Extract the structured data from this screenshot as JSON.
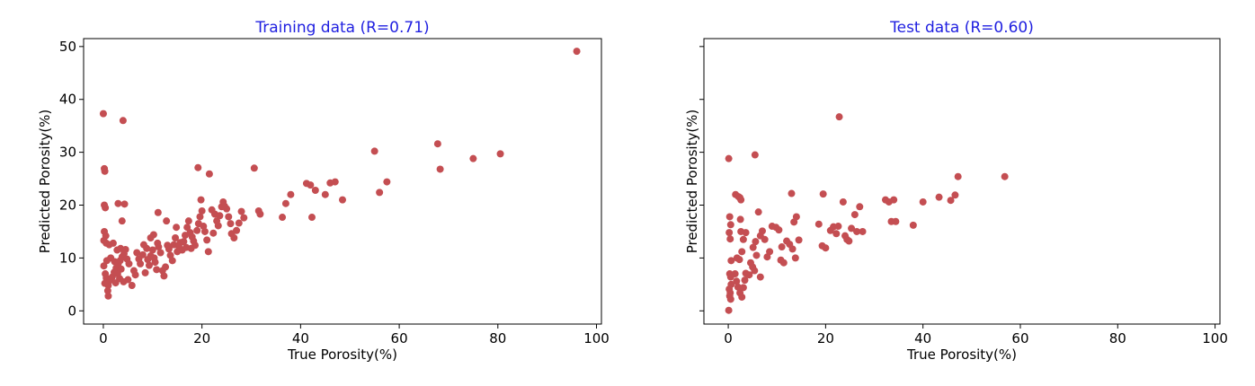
{
  "colors": {
    "marker": "#c44e52",
    "title": "#1f1fe0",
    "axis": "#000000"
  },
  "chart_data": [
    {
      "type": "scatter",
      "title": "Training data (R=0.71)",
      "xlabel": "True Porosity(%)",
      "ylabel": "Predicted Porosity(%)",
      "xlim": [
        -4,
        101
      ],
      "ylim": [
        -2.5,
        51.5
      ],
      "xticks": [
        0,
        20,
        40,
        60,
        80,
        100
      ],
      "xtick_labels": [
        "0",
        "20",
        "40",
        "60",
        "80",
        "100"
      ],
      "yticks": [
        0,
        10,
        20,
        30,
        40,
        50
      ],
      "ytick_labels": [
        "0",
        "10",
        "20",
        "30",
        "40",
        "50"
      ],
      "grid": false,
      "points": [
        [
          0.0,
          37.3
        ],
        [
          4.0,
          36.0
        ],
        [
          0.2,
          26.9
        ],
        [
          0.3,
          26.4
        ],
        [
          0.2,
          20.0
        ],
        [
          0.4,
          19.5
        ],
        [
          0.2,
          15.0
        ],
        [
          0.5,
          14.2
        ],
        [
          0.1,
          13.3
        ],
        [
          0.6,
          12.8
        ],
        [
          1.2,
          12.5
        ],
        [
          2.0,
          12.8
        ],
        [
          2.8,
          11.5
        ],
        [
          3.5,
          11.8
        ],
        [
          4.5,
          11.6
        ],
        [
          3.0,
          20.3
        ],
        [
          4.3,
          20.2
        ],
        [
          3.8,
          17.0
        ],
        [
          0.1,
          8.5
        ],
        [
          0.4,
          7.0
        ],
        [
          0.6,
          6.2
        ],
        [
          0.8,
          5.5
        ],
        [
          1.0,
          4.8
        ],
        [
          0.9,
          3.8
        ],
        [
          1.0,
          2.8
        ],
        [
          1.4,
          5.8
        ],
        [
          1.8,
          6.4
        ],
        [
          2.2,
          7.3
        ],
        [
          2.6,
          8.1
        ],
        [
          3.0,
          8.8
        ],
        [
          3.4,
          9.5
        ],
        [
          3.8,
          10.2
        ],
        [
          4.2,
          10.8
        ],
        [
          4.8,
          9.8
        ],
        [
          5.2,
          8.9
        ],
        [
          2.5,
          5.3
        ],
        [
          3.3,
          6.1
        ],
        [
          4.1,
          5.5
        ],
        [
          5.0,
          5.9
        ],
        [
          5.8,
          4.8
        ],
        [
          6.2,
          7.6
        ],
        [
          6.5,
          6.8
        ],
        [
          7.5,
          8.9
        ],
        [
          8.0,
          10.6
        ],
        [
          8.2,
          12.5
        ],
        [
          8.8,
          11.8
        ],
        [
          9.0,
          9.7
        ],
        [
          9.3,
          8.6
        ],
        [
          9.6,
          10.4
        ],
        [
          10.0,
          11.5
        ],
        [
          10.3,
          10.0
        ],
        [
          10.5,
          9.2
        ],
        [
          10.8,
          7.8
        ],
        [
          11.0,
          12.8
        ],
        [
          11.2,
          12.1
        ],
        [
          11.6,
          11.0
        ],
        [
          12.0,
          7.6
        ],
        [
          12.3,
          6.6
        ],
        [
          12.6,
          8.3
        ],
        [
          9.6,
          13.8
        ],
        [
          10.2,
          14.4
        ],
        [
          11.1,
          18.6
        ],
        [
          12.8,
          17.0
        ],
        [
          13.3,
          11.7
        ],
        [
          13.6,
          10.5
        ],
        [
          14.0,
          9.5
        ],
        [
          14.3,
          12.5
        ],
        [
          14.6,
          13.8
        ],
        [
          15.0,
          11.2
        ],
        [
          15.3,
          12.2
        ],
        [
          15.6,
          12.9
        ],
        [
          16.0,
          11.5
        ],
        [
          16.3,
          13.1
        ],
        [
          16.6,
          14.3
        ],
        [
          17.0,
          15.8
        ],
        [
          17.3,
          17.0
        ],
        [
          17.6,
          14.8
        ],
        [
          18.0,
          14.0
        ],
        [
          18.3,
          13.2
        ],
        [
          18.6,
          12.4
        ],
        [
          19.0,
          15.2
        ],
        [
          19.3,
          16.5
        ],
        [
          19.6,
          17.8
        ],
        [
          20.0,
          18.9
        ],
        [
          20.3,
          16.0
        ],
        [
          20.6,
          15.0
        ],
        [
          21.0,
          13.4
        ],
        [
          21.3,
          11.2
        ],
        [
          19.8,
          21.0
        ],
        [
          19.2,
          27.1
        ],
        [
          21.5,
          25.9
        ],
        [
          22.0,
          19.1
        ],
        [
          22.6,
          18.3
        ],
        [
          23.0,
          17.0
        ],
        [
          23.3,
          16.1
        ],
        [
          23.6,
          18.0
        ],
        [
          24.0,
          19.7
        ],
        [
          24.3,
          20.6
        ],
        [
          24.6,
          19.8
        ],
        [
          25.0,
          19.3
        ],
        [
          25.4,
          17.8
        ],
        [
          25.8,
          16.5
        ],
        [
          26.0,
          14.6
        ],
        [
          26.5,
          13.8
        ],
        [
          27.0,
          15.2
        ],
        [
          27.5,
          16.6
        ],
        [
          28.0,
          18.8
        ],
        [
          28.5,
          17.6
        ],
        [
          30.6,
          27.0
        ],
        [
          31.5,
          18.9
        ],
        [
          31.8,
          18.3
        ],
        [
          36.3,
          17.7
        ],
        [
          37.0,
          20.3
        ],
        [
          38.0,
          22.0
        ],
        [
          41.2,
          24.1
        ],
        [
          42.0,
          23.8
        ],
        [
          42.3,
          17.7
        ],
        [
          43.0,
          22.8
        ],
        [
          45.0,
          22.0
        ],
        [
          46.0,
          24.2
        ],
        [
          47.0,
          24.4
        ],
        [
          48.5,
          21.0
        ],
        [
          55.0,
          30.2
        ],
        [
          56.0,
          22.4
        ],
        [
          57.5,
          24.4
        ],
        [
          67.8,
          31.6
        ],
        [
          68.3,
          26.8
        ],
        [
          75.0,
          28.8
        ],
        [
          80.5,
          29.7
        ],
        [
          96.0,
          49.1
        ],
        [
          0.3,
          5.2
        ],
        [
          0.7,
          9.5
        ],
        [
          1.5,
          10.0
        ],
        [
          2.3,
          9.3
        ],
        [
          2.9,
          7.0
        ],
        [
          3.6,
          7.9
        ],
        [
          6.8,
          11.0
        ],
        [
          7.2,
          9.8
        ],
        [
          8.5,
          7.2
        ],
        [
          13.0,
          12.4
        ],
        [
          14.8,
          15.8
        ],
        [
          16.8,
          12.0
        ],
        [
          17.8,
          11.8
        ],
        [
          22.3,
          14.7
        ]
      ]
    },
    {
      "type": "scatter",
      "title": "Test data (R=0.60)",
      "xlabel": "True Porosity(%)",
      "ylabel": "Predicted Porosity(%)",
      "xlim": [
        -5,
        101
      ],
      "ylim": [
        -2.5,
        51.5
      ],
      "xticks": [
        0,
        20,
        40,
        60,
        80,
        100
      ],
      "xtick_labels": [
        "0",
        "20",
        "40",
        "60",
        "80",
        "100"
      ],
      "yticks": [
        0,
        10,
        20,
        30,
        40,
        50
      ],
      "ytick_labels": [
        "",
        "",
        "",
        "",
        "",
        ""
      ],
      "grid": false,
      "points": [
        [
          0.1,
          28.8
        ],
        [
          5.5,
          29.5
        ],
        [
          22.8,
          36.7
        ],
        [
          1.5,
          22.0
        ],
        [
          2.1,
          21.6
        ],
        [
          2.4,
          21.4
        ],
        [
          2.6,
          21.0
        ],
        [
          0.3,
          17.8
        ],
        [
          0.5,
          16.3
        ],
        [
          0.2,
          14.8
        ],
        [
          0.4,
          13.6
        ],
        [
          0.6,
          9.5
        ],
        [
          0.3,
          7.0
        ],
        [
          0.5,
          6.4
        ],
        [
          0.6,
          5.0
        ],
        [
          0.2,
          4.1
        ],
        [
          0.4,
          3.4
        ],
        [
          0.3,
          2.8
        ],
        [
          0.5,
          2.2
        ],
        [
          0.1,
          0.1
        ],
        [
          1.4,
          7.0
        ],
        [
          1.7,
          5.6
        ],
        [
          2.0,
          4.5
        ],
        [
          2.4,
          3.4
        ],
        [
          2.8,
          2.6
        ],
        [
          3.1,
          4.4
        ],
        [
          3.4,
          5.8
        ],
        [
          3.6,
          7.1
        ],
        [
          2.3,
          9.7
        ],
        [
          2.8,
          11.2
        ],
        [
          3.1,
          13.5
        ],
        [
          2.6,
          15.0
        ],
        [
          3.6,
          14.8
        ],
        [
          2.5,
          17.3
        ],
        [
          4.6,
          9.1
        ],
        [
          5.0,
          8.3
        ],
        [
          5.4,
          7.6
        ],
        [
          5.8,
          10.5
        ],
        [
          5.1,
          12.0
        ],
        [
          5.6,
          13.1
        ],
        [
          6.6,
          14.2
        ],
        [
          6.2,
          18.7
        ],
        [
          7.0,
          15.1
        ],
        [
          7.5,
          13.5
        ],
        [
          8.0,
          10.2
        ],
        [
          8.5,
          11.2
        ],
        [
          9.0,
          16.0
        ],
        [
          9.8,
          15.8
        ],
        [
          10.4,
          15.3
        ],
        [
          11.0,
          12.1
        ],
        [
          10.8,
          9.6
        ],
        [
          11.4,
          9.1
        ],
        [
          12.0,
          13.2
        ],
        [
          12.6,
          12.6
        ],
        [
          13.2,
          11.7
        ],
        [
          13.0,
          22.2
        ],
        [
          13.5,
          16.8
        ],
        [
          14.0,
          17.8
        ],
        [
          14.5,
          13.4
        ],
        [
          13.8,
          10.0
        ],
        [
          18.6,
          16.4
        ],
        [
          19.3,
          12.3
        ],
        [
          19.5,
          22.1
        ],
        [
          20.0,
          11.9
        ],
        [
          21.0,
          15.2
        ],
        [
          21.6,
          15.9
        ],
        [
          22.2,
          14.6
        ],
        [
          22.6,
          16.0
        ],
        [
          23.6,
          20.6
        ],
        [
          24.0,
          14.2
        ],
        [
          24.4,
          13.5
        ],
        [
          24.8,
          13.2
        ],
        [
          25.3,
          15.6
        ],
        [
          26.0,
          18.2
        ],
        [
          26.4,
          15.0
        ],
        [
          27.0,
          19.7
        ],
        [
          27.6,
          15.0
        ],
        [
          32.3,
          21.0
        ],
        [
          33.0,
          20.6
        ],
        [
          33.5,
          16.9
        ],
        [
          34.0,
          21.0
        ],
        [
          34.4,
          16.9
        ],
        [
          38.0,
          16.2
        ],
        [
          40.0,
          20.6
        ],
        [
          43.3,
          21.5
        ],
        [
          45.7,
          20.9
        ],
        [
          46.6,
          21.9
        ],
        [
          47.2,
          25.4
        ],
        [
          56.8,
          25.4
        ],
        [
          1.8,
          10.0
        ],
        [
          4.3,
          6.8
        ],
        [
          6.6,
          6.4
        ]
      ]
    }
  ]
}
